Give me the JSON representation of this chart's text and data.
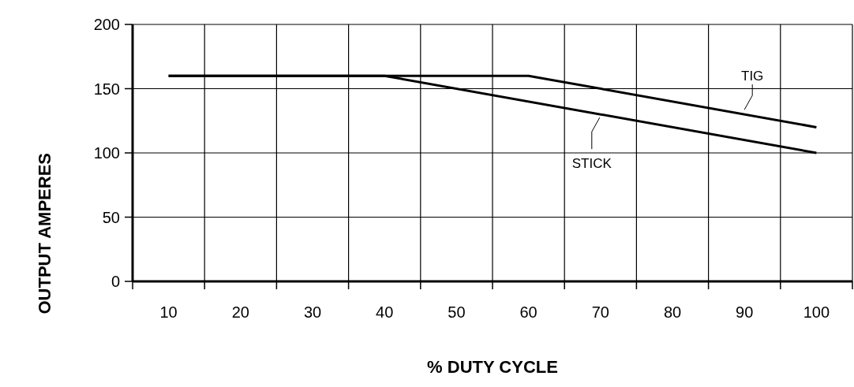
{
  "chart_data": {
    "type": "line",
    "xlabel": "% DUTY CYCLE",
    "ylabel": "OUTPUT AMPERES",
    "xlim": [
      5,
      105
    ],
    "xticks": [
      {
        "value": 5,
        "label": null
      },
      10,
      {
        "value": 15,
        "label": null
      },
      20,
      {
        "value": 25,
        "label": null
      },
      30,
      {
        "value": 35,
        "label": null
      },
      40,
      {
        "value": 45,
        "label": null
      },
      50,
      {
        "value": 55,
        "label": null
      },
      60,
      {
        "value": 65,
        "label": null
      },
      70,
      {
        "value": 75,
        "label": null
      },
      80,
      {
        "value": 85,
        "label": null
      },
      90,
      {
        "value": 95,
        "label": null
      },
      100,
      {
        "value": 105,
        "label": null
      }
    ],
    "ylim": [
      0,
      200
    ],
    "yticks": [
      0,
      50,
      100,
      150,
      200
    ],
    "grid": true,
    "marker": "none",
    "line_style": "solid",
    "series": [
      {
        "color": "#000000",
        "x": [
          10,
          60,
          100
        ],
        "values": [
          160,
          160,
          120
        ]
      },
      {
        "color": "#000000",
        "x": [
          10,
          40,
          100
        ],
        "values": [
          160,
          160,
          100
        ]
      }
    ],
    "annotations": [
      {
        "text": "TIG",
        "x": 90,
        "y": 130
      },
      {
        "text": "STICK",
        "x": 70,
        "y": 130
      }
    ]
  }
}
